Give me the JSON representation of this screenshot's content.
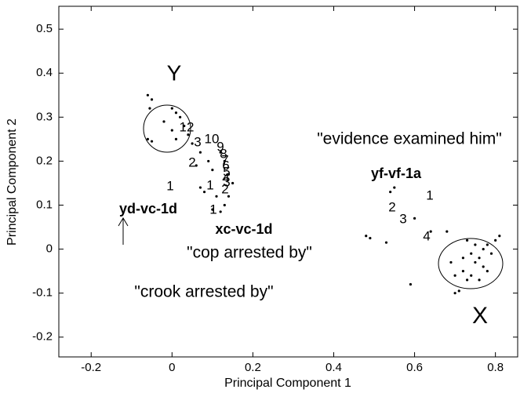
{
  "chart_data": {
    "type": "scatter",
    "xlabel": "Principal Component 1",
    "ylabel": "Principal Component 2",
    "xlim": [
      -0.28,
      0.855
    ],
    "ylim": [
      -0.245,
      0.552
    ],
    "xticks": [
      -0.2,
      0,
      0.2,
      0.4,
      0.6,
      0.8
    ],
    "yticks": [
      -0.2,
      -0.1,
      0,
      0.1,
      0.2,
      0.3,
      0.4,
      0.5
    ],
    "color": "#000000",
    "x": [
      -0.06,
      -0.05,
      -0.055,
      -0.06,
      -0.05,
      -0.02,
      0,
      0.01,
      0.02,
      0.03,
      0.04,
      0,
      0.01,
      0.05,
      0.07,
      0.06,
      0.09,
      0.1,
      0.12,
      0.13,
      0.14,
      0.15,
      0.14,
      0.13,
      0.11,
      0.1,
      0.12,
      0.08,
      0.07,
      0.55,
      0.54,
      0.48,
      0.49,
      0.53,
      0.6,
      0.64,
      0.59,
      0.68,
      0.69,
      0.7,
      0.7,
      0.71,
      0.72,
      0.73,
      0.74,
      0.75,
      0.76,
      0.77,
      0.78,
      0.79,
      0.8,
      0.81,
      0.74,
      0.73,
      0.76,
      0.78,
      0.72,
      0.75,
      0.77
    ],
    "y": [
      0.35,
      0.34,
      0.32,
      0.25,
      0.245,
      0.29,
      0.32,
      0.31,
      0.3,
      0.28,
      0.26,
      0.27,
      0.25,
      0.24,
      0.22,
      0.19,
      0.2,
      0.18,
      0.22,
      0.2,
      0.17,
      0.15,
      0.12,
      0.1,
      0.12,
      0.09,
      0.085,
      0.13,
      0.14,
      0.14,
      0.13,
      0.03,
      0.025,
      0.015,
      0.07,
      0.04,
      -0.08,
      0.04,
      -0.03,
      -0.06,
      -0.1,
      -0.095,
      -0.05,
      -0.07,
      -0.06,
      -0.03,
      -0.02,
      0,
      0.01,
      -0.01,
      0.02,
      0.03,
      -0.01,
      0.02,
      -0.07,
      -0.05,
      -0.02,
      0.01,
      -0.04
    ],
    "annotations": [
      "Y",
      "X",
      "\"evidence examined him\"",
      "yf-vf-1a",
      "yd-vc-1d",
      "xc-vc-1d",
      "\"cop arrested by\"",
      "\"crook arrested by\"",
      "1",
      "2",
      "3",
      "4",
      "1",
      "2",
      "1",
      "2",
      "1",
      "12",
      "3",
      "10",
      "9",
      "8",
      "7",
      "6",
      "5",
      "4",
      "3"
    ]
  }
}
